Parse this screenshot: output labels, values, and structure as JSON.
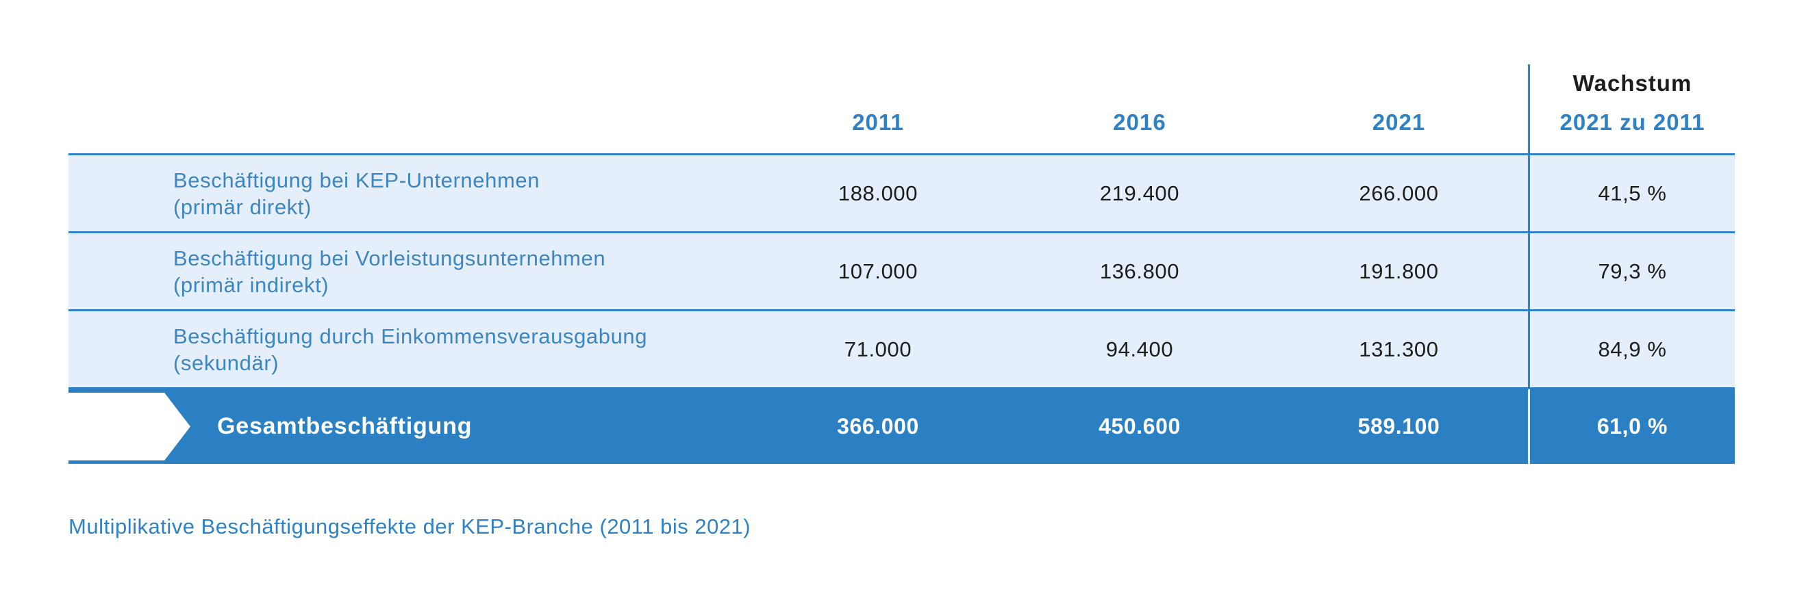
{
  "colors": {
    "accent_blue": "#2e81c4",
    "label_blue": "#3e86c2",
    "row_background": "#e4effb",
    "total_bar_blue": "#2b80c3",
    "dark_text": "#1d1d1b",
    "white": "#ffffff"
  },
  "header": {
    "years": [
      "2011",
      "2016",
      "2021"
    ],
    "growth_line1": "Wachstum",
    "growth_line2": "2021 zu 2011"
  },
  "rows": [
    {
      "label_line1": "Beschäftigung bei KEP-Unternehmen",
      "label_line2": "(primär direkt)",
      "values": [
        "188.000",
        "219.400",
        "266.000"
      ],
      "growth": "41,5 %"
    },
    {
      "label_line1": "Beschäftigung bei Vorleistungsunternehmen",
      "label_line2": "(primär indirekt)",
      "values": [
        "107.000",
        "136.800",
        "191.800"
      ],
      "growth": "79,3 %"
    },
    {
      "label_line1": "Beschäftigung durch Einkommensverausgabung",
      "label_line2": "(sekundär)",
      "values": [
        "71.000",
        "94.400",
        "131.300"
      ],
      "growth": "84,9 %"
    }
  ],
  "total": {
    "label": "Gesamtbeschäftigung",
    "values": [
      "366.000",
      "450.600",
      "589.100"
    ],
    "growth": "61,0 %"
  },
  "caption": "Multiplikative Beschäftigungseffekte der KEP-Branche (2011 bis 2021)",
  "chart_data": {
    "type": "table",
    "title": "Multiplikative Beschäftigungseffekte der KEP-Branche (2011 bis 2021)",
    "categories": [
      "2011",
      "2016",
      "2021"
    ],
    "growth_column_label": "Wachstum 2021 zu 2011",
    "series": [
      {
        "name": "Beschäftigung bei KEP-Unternehmen (primär direkt)",
        "values": [
          188000,
          219400,
          266000
        ],
        "growth_2021_zu_2011_percent": 41.5
      },
      {
        "name": "Beschäftigung bei Vorleistungsunternehmen (primär indirekt)",
        "values": [
          107000,
          136800,
          191800
        ],
        "growth_2021_zu_2011_percent": 79.3
      },
      {
        "name": "Beschäftigung durch Einkommensverausgabung (sekundär)",
        "values": [
          71000,
          94400,
          131300
        ],
        "growth_2021_zu_2011_percent": 84.9
      },
      {
        "name": "Gesamtbeschäftigung",
        "values": [
          366000,
          450600,
          589100
        ],
        "growth_2021_zu_2011_percent": 61.0
      }
    ],
    "layout": {
      "row_striping": "light-blue data rows, solid blue total row",
      "separator": "vertical rule before growth column",
      "legend": "none",
      "grid": "horizontal rules between rows"
    }
  }
}
